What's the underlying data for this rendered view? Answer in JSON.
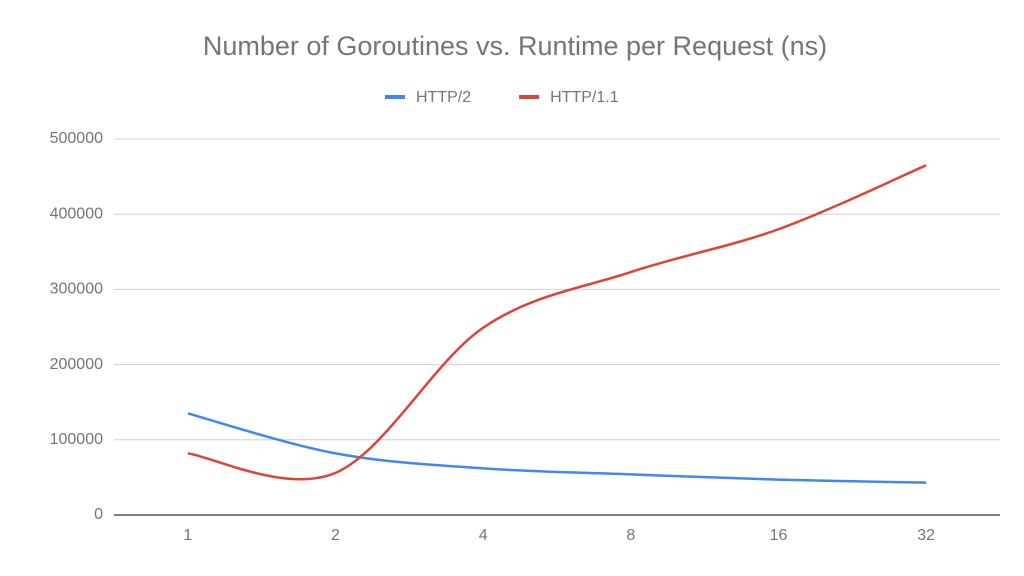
{
  "chart_data": {
    "type": "line",
    "title": "Number of Goroutines vs. Runtime per Request (ns)",
    "categories": [
      "1",
      "2",
      "4",
      "8",
      "16",
      "32"
    ],
    "series": [
      {
        "name": "HTTP/2",
        "color": "#4285f4",
        "values": [
          135000,
          82000,
          62000,
          54000,
          47000,
          43000
        ]
      },
      {
        "name": "HTTP/1.1",
        "color": "#db4437",
        "values": [
          82000,
          56000,
          249000,
          323000,
          380000,
          465000
        ]
      }
    ],
    "ylim": [
      0,
      500000
    ],
    "yticks": [
      0,
      100000,
      200000,
      300000,
      400000,
      500000
    ],
    "grid": true,
    "legend": "top"
  }
}
